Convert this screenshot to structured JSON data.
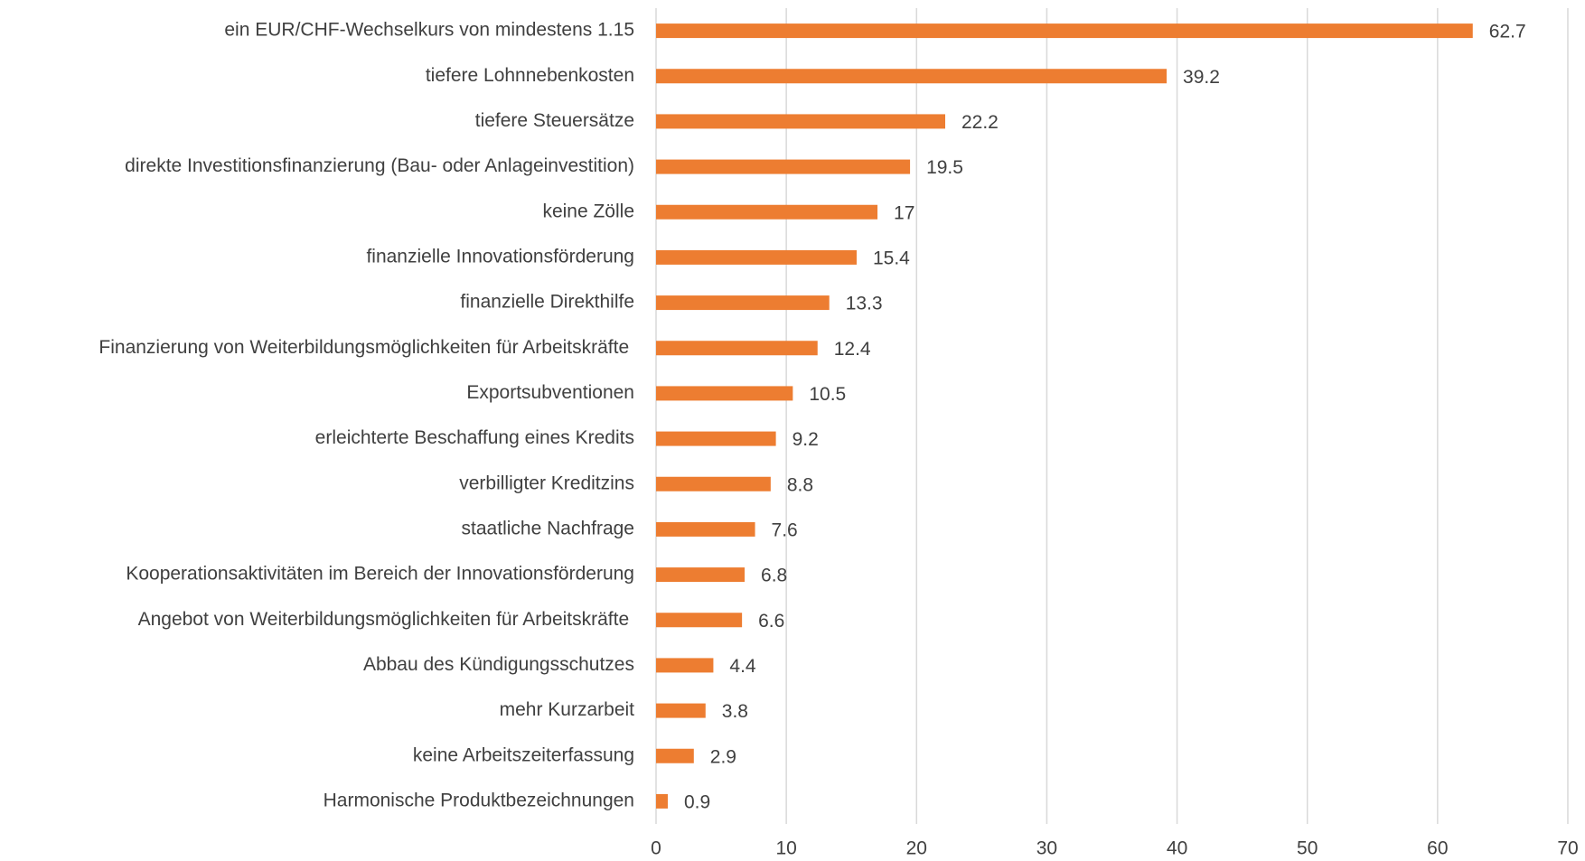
{
  "chart_data": {
    "type": "bar",
    "orientation": "horizontal",
    "categories": [
      "ein EUR/CHF-Wechselkurs von mindestens 1.15",
      "tiefere Lohnnebenkosten",
      "tiefere Steuersätze",
      "direkte Investitionsfinanzierung (Bau- oder Anlageinvestition)",
      "keine Zölle",
      "finanzielle Innovationsförderung",
      "finanzielle Direkthilfe",
      "Finanzierung von Weiterbildungsmöglichkeiten für Arbeitskräfte ",
      "Exportsubventionen",
      "erleichterte Beschaffung eines Kredits",
      "verbilligter Kreditzins",
      "staatliche Nachfrage",
      "Kooperationsaktivitäten im Bereich der Innovationsförderung",
      "Angebot von Weiterbildungsmöglichkeiten für Arbeitskräfte ",
      "Abbau des Kündigungsschutzes",
      "mehr Kurzarbeit",
      "keine Arbeitszeiterfassung",
      "Harmonische Produktbezeichnungen"
    ],
    "values": [
      62.7,
      39.2,
      22.2,
      19.5,
      17,
      15.4,
      13.3,
      12.4,
      10.5,
      9.2,
      8.8,
      7.6,
      6.8,
      6.6,
      4.4,
      3.8,
      2.9,
      0.9
    ],
    "color": "#ed7d31",
    "xlim": [
      0,
      70
    ],
    "xticks": [
      0,
      10,
      20,
      30,
      40,
      50,
      60,
      70
    ],
    "grid": true
  }
}
